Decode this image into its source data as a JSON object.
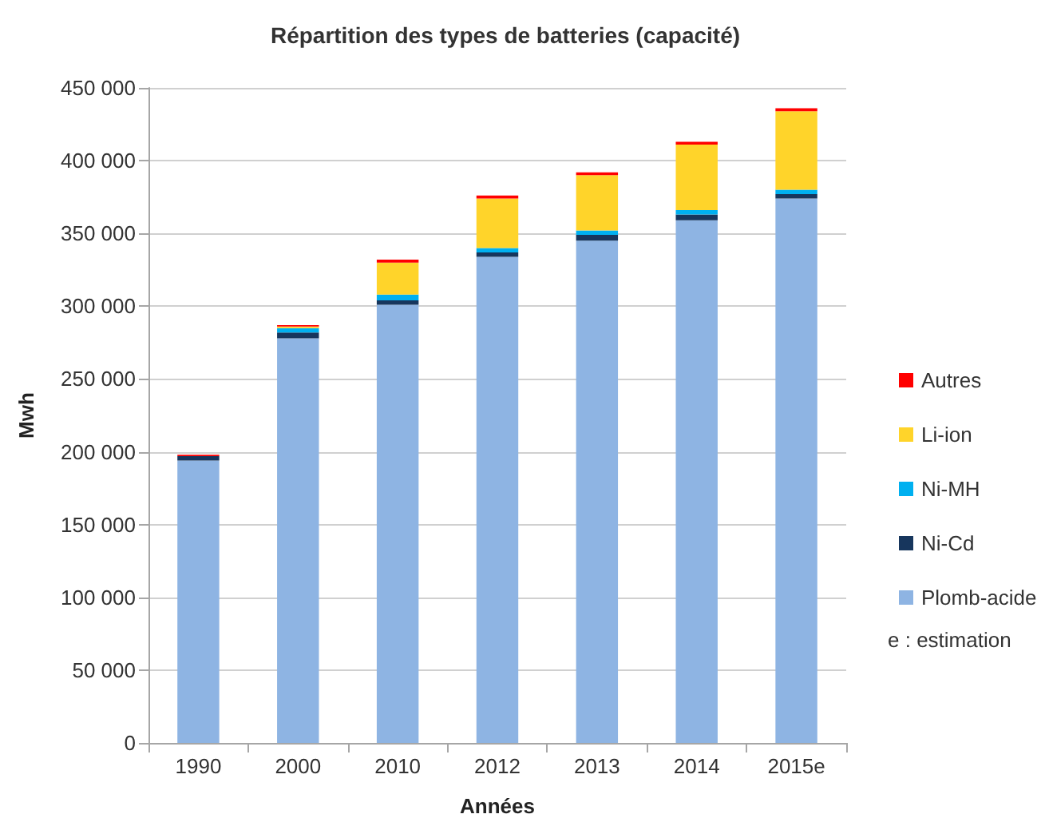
{
  "chart_data": {
    "type": "bar",
    "title": "Répartition des types de batteries (capacité)",
    "xlabel": "Années",
    "ylabel": "Mwh",
    "categories": [
      "1990",
      "2000",
      "2010",
      "2012",
      "2013",
      "2014",
      "2015e"
    ],
    "stacked": true,
    "series": [
      {
        "name": "Plomb-acide",
        "color": "#8eb4e3",
        "values": [
          194000,
          278000,
          301000,
          334000,
          345000,
          359000,
          374000
        ]
      },
      {
        "name": "Ni-Cd",
        "color": "#17365d",
        "values": [
          3000,
          4000,
          3000,
          3000,
          4000,
          4000,
          3000
        ]
      },
      {
        "name": "Ni-MH",
        "color": "#00b0f0",
        "values": [
          0,
          3000,
          4000,
          3000,
          3000,
          3000,
          3000
        ]
      },
      {
        "name": "Li-ion",
        "color": "#ffd42a",
        "values": [
          0,
          1000,
          22000,
          34000,
          38000,
          45000,
          54000
        ]
      },
      {
        "name": "Autres",
        "color": "#ff0000",
        "values": [
          1000,
          1000,
          2000,
          2000,
          2000,
          2000,
          2000
        ]
      }
    ],
    "ylim": [
      0,
      450000
    ],
    "yticks": [
      0,
      {
        "value": 50000,
        "label": "50 000"
      },
      {
        "value": 100000,
        "label": "100 000"
      },
      {
        "value": 150000,
        "label": "150 000"
      },
      {
        "value": 200000,
        "label": "200 000"
      },
      {
        "value": 250000,
        "label": "250 000"
      },
      {
        "value": 300000,
        "label": "300 000"
      },
      {
        "value": 350000,
        "label": "350 000"
      },
      {
        "value": 400000,
        "label": "400 000"
      },
      {
        "value": 450000,
        "label": "450 000"
      }
    ],
    "grid": "y",
    "legend": "right",
    "annotations": [
      "e : estimation"
    ]
  }
}
